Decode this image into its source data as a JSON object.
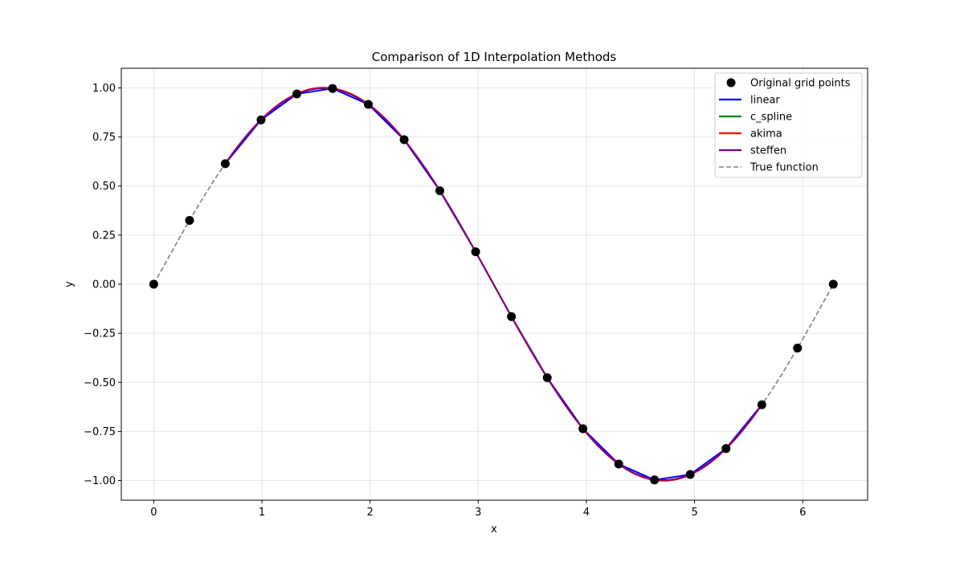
{
  "chart_data": {
    "type": "line",
    "title": "Comparison of 1D Interpolation Methods",
    "xlabel": "x",
    "ylabel": "y",
    "xlim": [
      -0.3,
      6.6
    ],
    "ylim": [
      -1.1,
      1.1
    ],
    "grid": true,
    "legend_position": "upper right",
    "xticks": [
      0,
      1,
      2,
      3,
      4,
      5,
      6
    ],
    "xtick_labels": [
      "0",
      "1",
      "2",
      "3",
      "4",
      "5",
      "6"
    ],
    "yticks": [
      1.0,
      0.75,
      0.5,
      0.25,
      0.0,
      -0.25,
      -0.5,
      -0.75,
      -1.0
    ],
    "ytick_labels": [
      "1.00",
      "0.75",
      "0.50",
      "0.25",
      "0.00",
      "−0.25",
      "−0.50",
      "−0.75",
      "−1.00"
    ],
    "grid_points": {
      "x": [
        0.0,
        0.331,
        0.661,
        0.992,
        1.323,
        1.653,
        1.984,
        2.315,
        2.645,
        2.976,
        3.307,
        3.638,
        3.968,
        4.299,
        4.63,
        4.96,
        5.291,
        5.622,
        5.952,
        6.283
      ],
      "y": [
        0.0,
        0.325,
        0.614,
        0.837,
        0.969,
        0.997,
        0.916,
        0.736,
        0.476,
        0.165,
        -0.165,
        -0.476,
        -0.736,
        -0.916,
        -0.997,
        -0.969,
        -0.837,
        -0.614,
        -0.325,
        0.0
      ]
    },
    "series": [
      {
        "name": "Original grid points",
        "style": "markers",
        "color": "#000000"
      },
      {
        "name": "linear",
        "style": "solid",
        "color": "#0000ff",
        "x_range": [
          0.661,
          5.622
        ]
      },
      {
        "name": "c_spline",
        "style": "solid",
        "color": "#008000",
        "x_range": [
          0.661,
          5.622
        ]
      },
      {
        "name": "akima",
        "style": "solid",
        "color": "#ff0000",
        "x_range": [
          0.661,
          5.622
        ]
      },
      {
        "name": "steffen",
        "style": "solid",
        "color": "#800080",
        "x_range": [
          0.661,
          5.622
        ]
      },
      {
        "name": "True function",
        "style": "dashed",
        "color": "#808080",
        "function": "sin(x)",
        "x_range": [
          0,
          6.283
        ]
      }
    ]
  },
  "legend": {
    "items": [
      {
        "label": "Original grid points",
        "kind": "marker",
        "color": "#000000"
      },
      {
        "label": "linear",
        "kind": "line",
        "color": "#0000ff"
      },
      {
        "label": "c_spline",
        "kind": "line",
        "color": "#008000"
      },
      {
        "label": "akima",
        "kind": "line",
        "color": "#ff0000"
      },
      {
        "label": "steffen",
        "kind": "line",
        "color": "#800080"
      },
      {
        "label": "True function",
        "kind": "dashed",
        "color": "#808080"
      }
    ]
  }
}
